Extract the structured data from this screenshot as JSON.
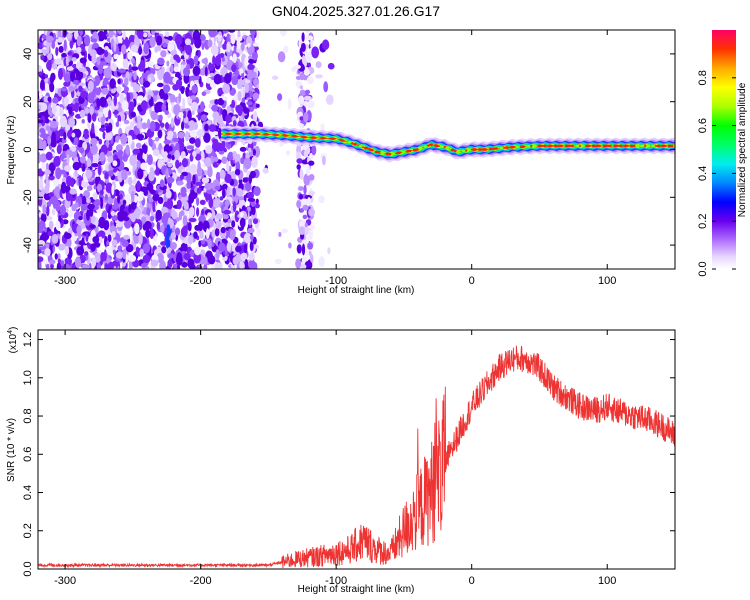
{
  "title": "GN04.2025.327.01.26.G17",
  "chart_data": [
    {
      "type": "heatmap",
      "name": "spectrogram",
      "xlabel": "Height of straight line (km)",
      "ylabel": "Frequency (Hz)",
      "xlim": [
        -320,
        150
      ],
      "ylim": [
        -50,
        50
      ],
      "xticks": [
        -300,
        -200,
        -100,
        0,
        100
      ],
      "xtick_labels": [
        "-300",
        "-200",
        "-100",
        "0",
        "100"
      ],
      "yticks": [
        -40,
        -20,
        0,
        20,
        40
      ],
      "ytick_labels": [
        "-40",
        "-20",
        "0",
        "20",
        "40"
      ],
      "ridge": {
        "x": [
          -185,
          -170,
          -157,
          -140,
          -120,
          -100,
          -90,
          -80,
          -70,
          -60,
          -50,
          -40,
          -30,
          -20,
          -10,
          0,
          10,
          20,
          30,
          50,
          70,
          90,
          110,
          130,
          150
        ],
        "y": [
          6.5,
          6.5,
          6.5,
          6,
          5,
          4.5,
          3,
          1,
          -1,
          -2,
          -1,
          0,
          2,
          1,
          -1,
          0,
          0,
          0.5,
          1,
          1.5,
          1.5,
          1.5,
          1.5,
          1.5,
          1.5
        ]
      },
      "colorbar": {
        "label": "Normalized spectral amplitude",
        "range": [
          0,
          1
        ],
        "ticks": [
          0.0,
          0.2,
          0.4,
          0.6,
          0.8
        ],
        "tick_labels": [
          "0.0",
          "0.2",
          "0.4",
          "0.6",
          "0.8"
        ]
      }
    },
    {
      "type": "line",
      "name": "snr",
      "xlabel": "Height of straight line (km)",
      "ylabel": "SNR (10 * v/v)",
      "scale_label": "(x10",
      "scale_exponent": "4",
      "scale_close": ")",
      "xlim": [
        -320,
        150
      ],
      "ylim": [
        0,
        1.25
      ],
      "xticks": [
        -300,
        -200,
        -100,
        0,
        100
      ],
      "xtick_labels": [
        "-300",
        "-200",
        "-100",
        "0",
        "100"
      ],
      "yticks": [
        0,
        0.2,
        0.4,
        0.6,
        0.8,
        1.0,
        1.2
      ],
      "ytick_labels": [
        "0.0",
        "0.2",
        "0.4",
        "0.6",
        "0.8",
        "1.0",
        "1.2"
      ],
      "color": "#ee3333",
      "envelope": {
        "x": [
          -320,
          -200,
          -150,
          -130,
          -110,
          -90,
          -80,
          -70,
          -60,
          -50,
          -40,
          -30,
          -20,
          -10,
          0,
          10,
          20,
          30,
          40,
          50,
          60,
          70,
          80,
          90,
          100,
          110,
          120,
          130,
          140,
          150
        ],
        "y": [
          0.02,
          0.02,
          0.02,
          0.05,
          0.07,
          0.1,
          0.15,
          0.1,
          0.08,
          0.2,
          0.3,
          0.4,
          0.55,
          0.7,
          0.85,
          0.95,
          1.05,
          1.1,
          1.1,
          1.05,
          0.95,
          0.9,
          0.85,
          0.83,
          0.85,
          0.82,
          0.8,
          0.78,
          0.75,
          0.7
        ]
      }
    }
  ]
}
